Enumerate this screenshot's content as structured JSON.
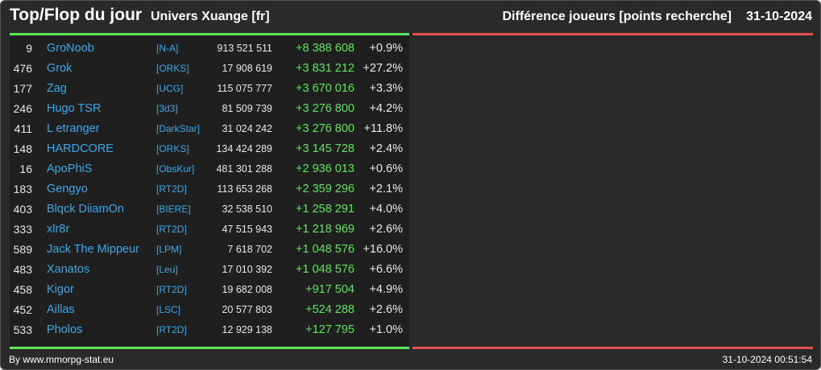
{
  "header": {
    "title": "Top/Flop du jour",
    "subtitle": "Univers Xuange [fr]",
    "right_title": "Différence joueurs [points recherche]",
    "date": "31-10-2024"
  },
  "colors": {
    "accent_green": "#5ce65c",
    "accent_red": "#e05050",
    "link_blue": "#3aa8e8"
  },
  "top_rows": [
    {
      "rank": "9",
      "name": "GroNoob",
      "alliance": "[N-A]",
      "points": "913 521 511",
      "diff": "+8 388 608",
      "pct": "+0.9%"
    },
    {
      "rank": "476",
      "name": "Grok",
      "alliance": "[ORKS]",
      "points": "17 908 619",
      "diff": "+3 831 212",
      "pct": "+27.2%"
    },
    {
      "rank": "177",
      "name": "Zag",
      "alliance": "[UCG]",
      "points": "115 075 777",
      "diff": "+3 670 016",
      "pct": "+3.3%"
    },
    {
      "rank": "246",
      "name": "Hugo TSR",
      "alliance": "[3d3]",
      "points": "81 509 739",
      "diff": "+3 276 800",
      "pct": "+4.2%"
    },
    {
      "rank": "411",
      "name": "L etranger",
      "alliance": "[DarkStar]",
      "points": "31 024 242",
      "diff": "+3 276 800",
      "pct": "+11.8%"
    },
    {
      "rank": "148",
      "name": "HARDCORE",
      "alliance": "[ORKS]",
      "points": "134 424 289",
      "diff": "+3 145 728",
      "pct": "+2.4%"
    },
    {
      "rank": "16",
      "name": "ApoPhiS",
      "alliance": "[ObsKur]",
      "points": "481 301 288",
      "diff": "+2 936 013",
      "pct": "+0.6%"
    },
    {
      "rank": "183",
      "name": "Gengyo",
      "alliance": "[RT2D]",
      "points": "113 653 268",
      "diff": "+2 359 296",
      "pct": "+2.1%"
    },
    {
      "rank": "403",
      "name": "Blqck DiiamOn",
      "alliance": "[BIERE]",
      "points": "32 538 510",
      "diff": "+1 258 291",
      "pct": "+4.0%"
    },
    {
      "rank": "333",
      "name": "xlr8r",
      "alliance": "[RT2D]",
      "points": "47 515 943",
      "diff": "+1 218 969",
      "pct": "+2.6%"
    },
    {
      "rank": "589",
      "name": "Jack The Mippeur",
      "alliance": "[LPM]",
      "points": "7 618 702",
      "diff": "+1 048 576",
      "pct": "+16.0%"
    },
    {
      "rank": "483",
      "name": "Xanatos",
      "alliance": "[Leu]",
      "points": "17 010 392",
      "diff": "+1 048 576",
      "pct": "+6.6%"
    },
    {
      "rank": "458",
      "name": "Kigor",
      "alliance": "[RT2D]",
      "points": "19 682 008",
      "diff": "+917 504",
      "pct": "+4.9%"
    },
    {
      "rank": "452",
      "name": "Aillas",
      "alliance": "[LSC]",
      "points": "20 577 803",
      "diff": "+524 288",
      "pct": "+2.6%"
    },
    {
      "rank": "533",
      "name": "Pholos",
      "alliance": "[RT2D]",
      "points": "12 929 138",
      "diff": "+127 795",
      "pct": "+1.0%"
    }
  ],
  "footer": {
    "credit": "By www.mmorpg-stat.eu",
    "timestamp": "31-10-2024 00:51:54"
  }
}
